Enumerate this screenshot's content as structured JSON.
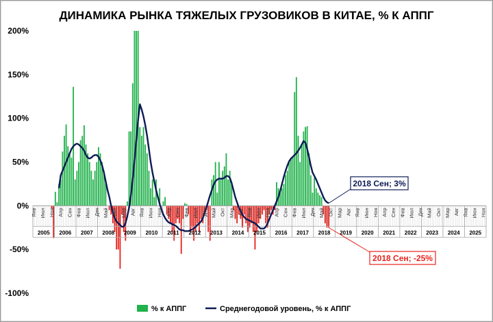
{
  "chart_data": {
    "type": "bar",
    "title": "ДИНАМИКА РЫНКА ТЯЖЕЛЫХ ГРУЗОВИКОВ В КИТАЕ, % К АППГ",
    "ylim": [
      -100,
      200
    ],
    "yticks": [
      "200%",
      "150%",
      "100%",
      "50%",
      "0%",
      "-50%",
      "-100%"
    ],
    "ytick_values": [
      200,
      150,
      100,
      50,
      0,
      -50,
      -100
    ],
    "x_start": "2005-01",
    "month_labels": [
      "Янв",
      "Июл",
      "Ноя",
      "Апр",
      "Сен",
      "Фев",
      "Июл",
      "Дек",
      "Май",
      "Окт",
      "Мар",
      "Авг",
      "Янв",
      "Июн",
      "Ноя",
      "Апр",
      "Сен",
      "Фев",
      "Июл",
      "Дек",
      "Май",
      "Окт",
      "Мар",
      "Авг",
      "Янв",
      "Июн",
      "Ноя",
      "Апр",
      "Сен",
      "Фев",
      "Июл",
      "Дек",
      "Май",
      "Окт",
      "Мар",
      "Авг",
      "Янв",
      "Июн",
      "Ноя",
      "Апр",
      "Сен",
      "Фев",
      "Июл",
      "Дек",
      "Май",
      "Окт",
      "Мар",
      "Авг",
      "Янв",
      "Июн",
      "Ноя"
    ],
    "year_labels": [
      "2005",
      "2006",
      "2007",
      "2008",
      "2009",
      "2010",
      "2011",
      "2012",
      "2013",
      "2014",
      "2015",
      "2016",
      "2017",
      "2018",
      "2019",
      "2020",
      "2021",
      "2022",
      "2023",
      "2024",
      "2025"
    ],
    "series": [
      {
        "name": "% к АППГ",
        "type": "bar",
        "colors": {
          "positive": "#22b24c",
          "negative": "#e8231e"
        },
        "values": [
          0,
          0,
          0,
          0,
          0,
          0,
          0,
          0,
          0,
          0,
          -3,
          -37,
          16,
          4,
          25,
          30,
          62,
          80,
          93,
          68,
          60,
          55,
          136,
          30,
          40,
          50,
          75,
          80,
          92,
          70,
          60,
          50,
          40,
          30,
          40,
          50,
          67,
          60,
          50,
          40,
          27,
          0,
          -5,
          -10,
          -20,
          -30,
          -50,
          -50,
          -72,
          -10,
          -30,
          -40,
          5,
          85,
          85,
          140,
          200,
          200,
          200,
          90,
          80,
          90,
          70,
          60,
          40,
          20,
          30,
          10,
          30,
          0,
          20,
          0,
          5,
          10,
          -10,
          -15,
          -20,
          -30,
          -40,
          -20,
          -15,
          -20,
          -55,
          -15,
          3,
          2,
          -10,
          -30,
          -25,
          -40,
          -30,
          -20,
          -30,
          -15,
          -20,
          -10,
          -5,
          -30,
          -40,
          30,
          35,
          50,
          15,
          50,
          30,
          40,
          45,
          60,
          30,
          40,
          25,
          -5,
          -15,
          -20,
          -10,
          -15,
          -25,
          -10,
          -20,
          -30,
          -25,
          -20,
          -30,
          -50,
          -30,
          -20,
          -15,
          -10,
          -5,
          -20,
          -25,
          -10,
          -5,
          -10,
          -5,
          27,
          20,
          15,
          20,
          25,
          35,
          40,
          50,
          55,
          55,
          130,
          147,
          80,
          50,
          70,
          85,
          90,
          91,
          60,
          35,
          15,
          32,
          20,
          15,
          12,
          10,
          -10,
          -20,
          -25,
          -25
        ],
        "annotation": {
          "label": "2018 Сен; -25%",
          "color": "#e8231e"
        }
      },
      {
        "name": "Среднегодовой уровень, % к АППГ",
        "type": "line",
        "color": "#0d1a55",
        "values": [
          null,
          null,
          null,
          null,
          null,
          null,
          null,
          null,
          null,
          null,
          null,
          null,
          null,
          null,
          20,
          35,
          40,
          45,
          50,
          55,
          60,
          65,
          68,
          70,
          71,
          70,
          68,
          66,
          63,
          58,
          55,
          54,
          55,
          57,
          58,
          58,
          56,
          52,
          46,
          38,
          28,
          18,
          10,
          0,
          -8,
          -14,
          -18,
          -20,
          -22,
          -24,
          -24,
          -20,
          -12,
          -2,
          12,
          30,
          52,
          75,
          98,
          116,
          110,
          102,
          92,
          80,
          65,
          50,
          38,
          28,
          18,
          10,
          2,
          -4,
          -10,
          -14,
          -17,
          -19,
          -20,
          -21,
          -22,
          -23,
          -25,
          -27,
          -28,
          -28,
          -29,
          -29,
          -29,
          -28,
          -27,
          -26,
          -24,
          -22,
          -20,
          -18,
          -14,
          -8,
          -2,
          5,
          12,
          18,
          24,
          28,
          30,
          31,
          31,
          31,
          32,
          34,
          34,
          32,
          26,
          18,
          10,
          4,
          -2,
          -6,
          -10,
          -13,
          -15,
          -16,
          -17,
          -18,
          -19,
          -20,
          -22,
          -24,
          -26,
          -26,
          -26,
          -24,
          -20,
          -15,
          -10,
          -5,
          0,
          5,
          10,
          17,
          25,
          33,
          40,
          46,
          51,
          54,
          56,
          58,
          60,
          63,
          66,
          70,
          74,
          72,
          65,
          56,
          46,
          38,
          34,
          30,
          25,
          20,
          15,
          10,
          6,
          4,
          3
        ],
        "annotation": {
          "label": "2018 Сен; 3%",
          "color": "#0d1a55"
        }
      }
    ],
    "legend_placement": "bottom",
    "grid": false
  }
}
